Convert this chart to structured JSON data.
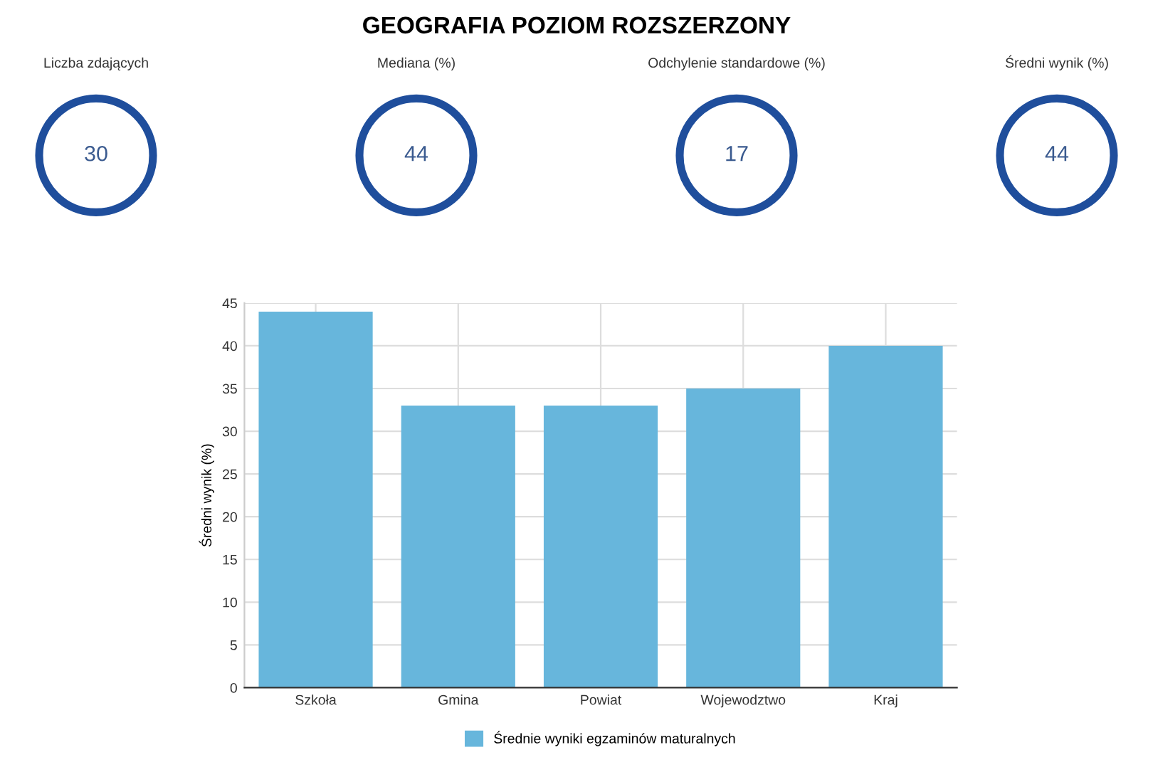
{
  "chart_data": [
    {
      "type": "other",
      "title": "GEOGRAFIA POZIOM ROZSZERZONY",
      "categories": [
        "Liczba zdających",
        "Mediana (%)",
        "Odchylenie standardowe (%)",
        "Średni wynik (%)"
      ],
      "values": [
        30,
        44,
        17,
        44
      ],
      "color": "#1f4e9c",
      "data_labels": true
    },
    {
      "type": "bar",
      "ylabel": "Średni wynik (%)",
      "categories": [
        "Szkoła",
        "Gmina",
        "Powiat",
        "Wojewodztwo",
        "Kraj"
      ],
      "series": [
        {
          "name": "Średnie wyniki egzaminów maturalnych",
          "color": "#67b6dc",
          "values": [
            44,
            33,
            33,
            35,
            40
          ]
        }
      ],
      "ylim": [
        0,
        45
      ],
      "yticks": [
        0,
        5,
        10,
        15,
        20,
        25,
        30,
        35,
        40,
        45
      ],
      "grid": true,
      "legend": "bottom"
    }
  ]
}
